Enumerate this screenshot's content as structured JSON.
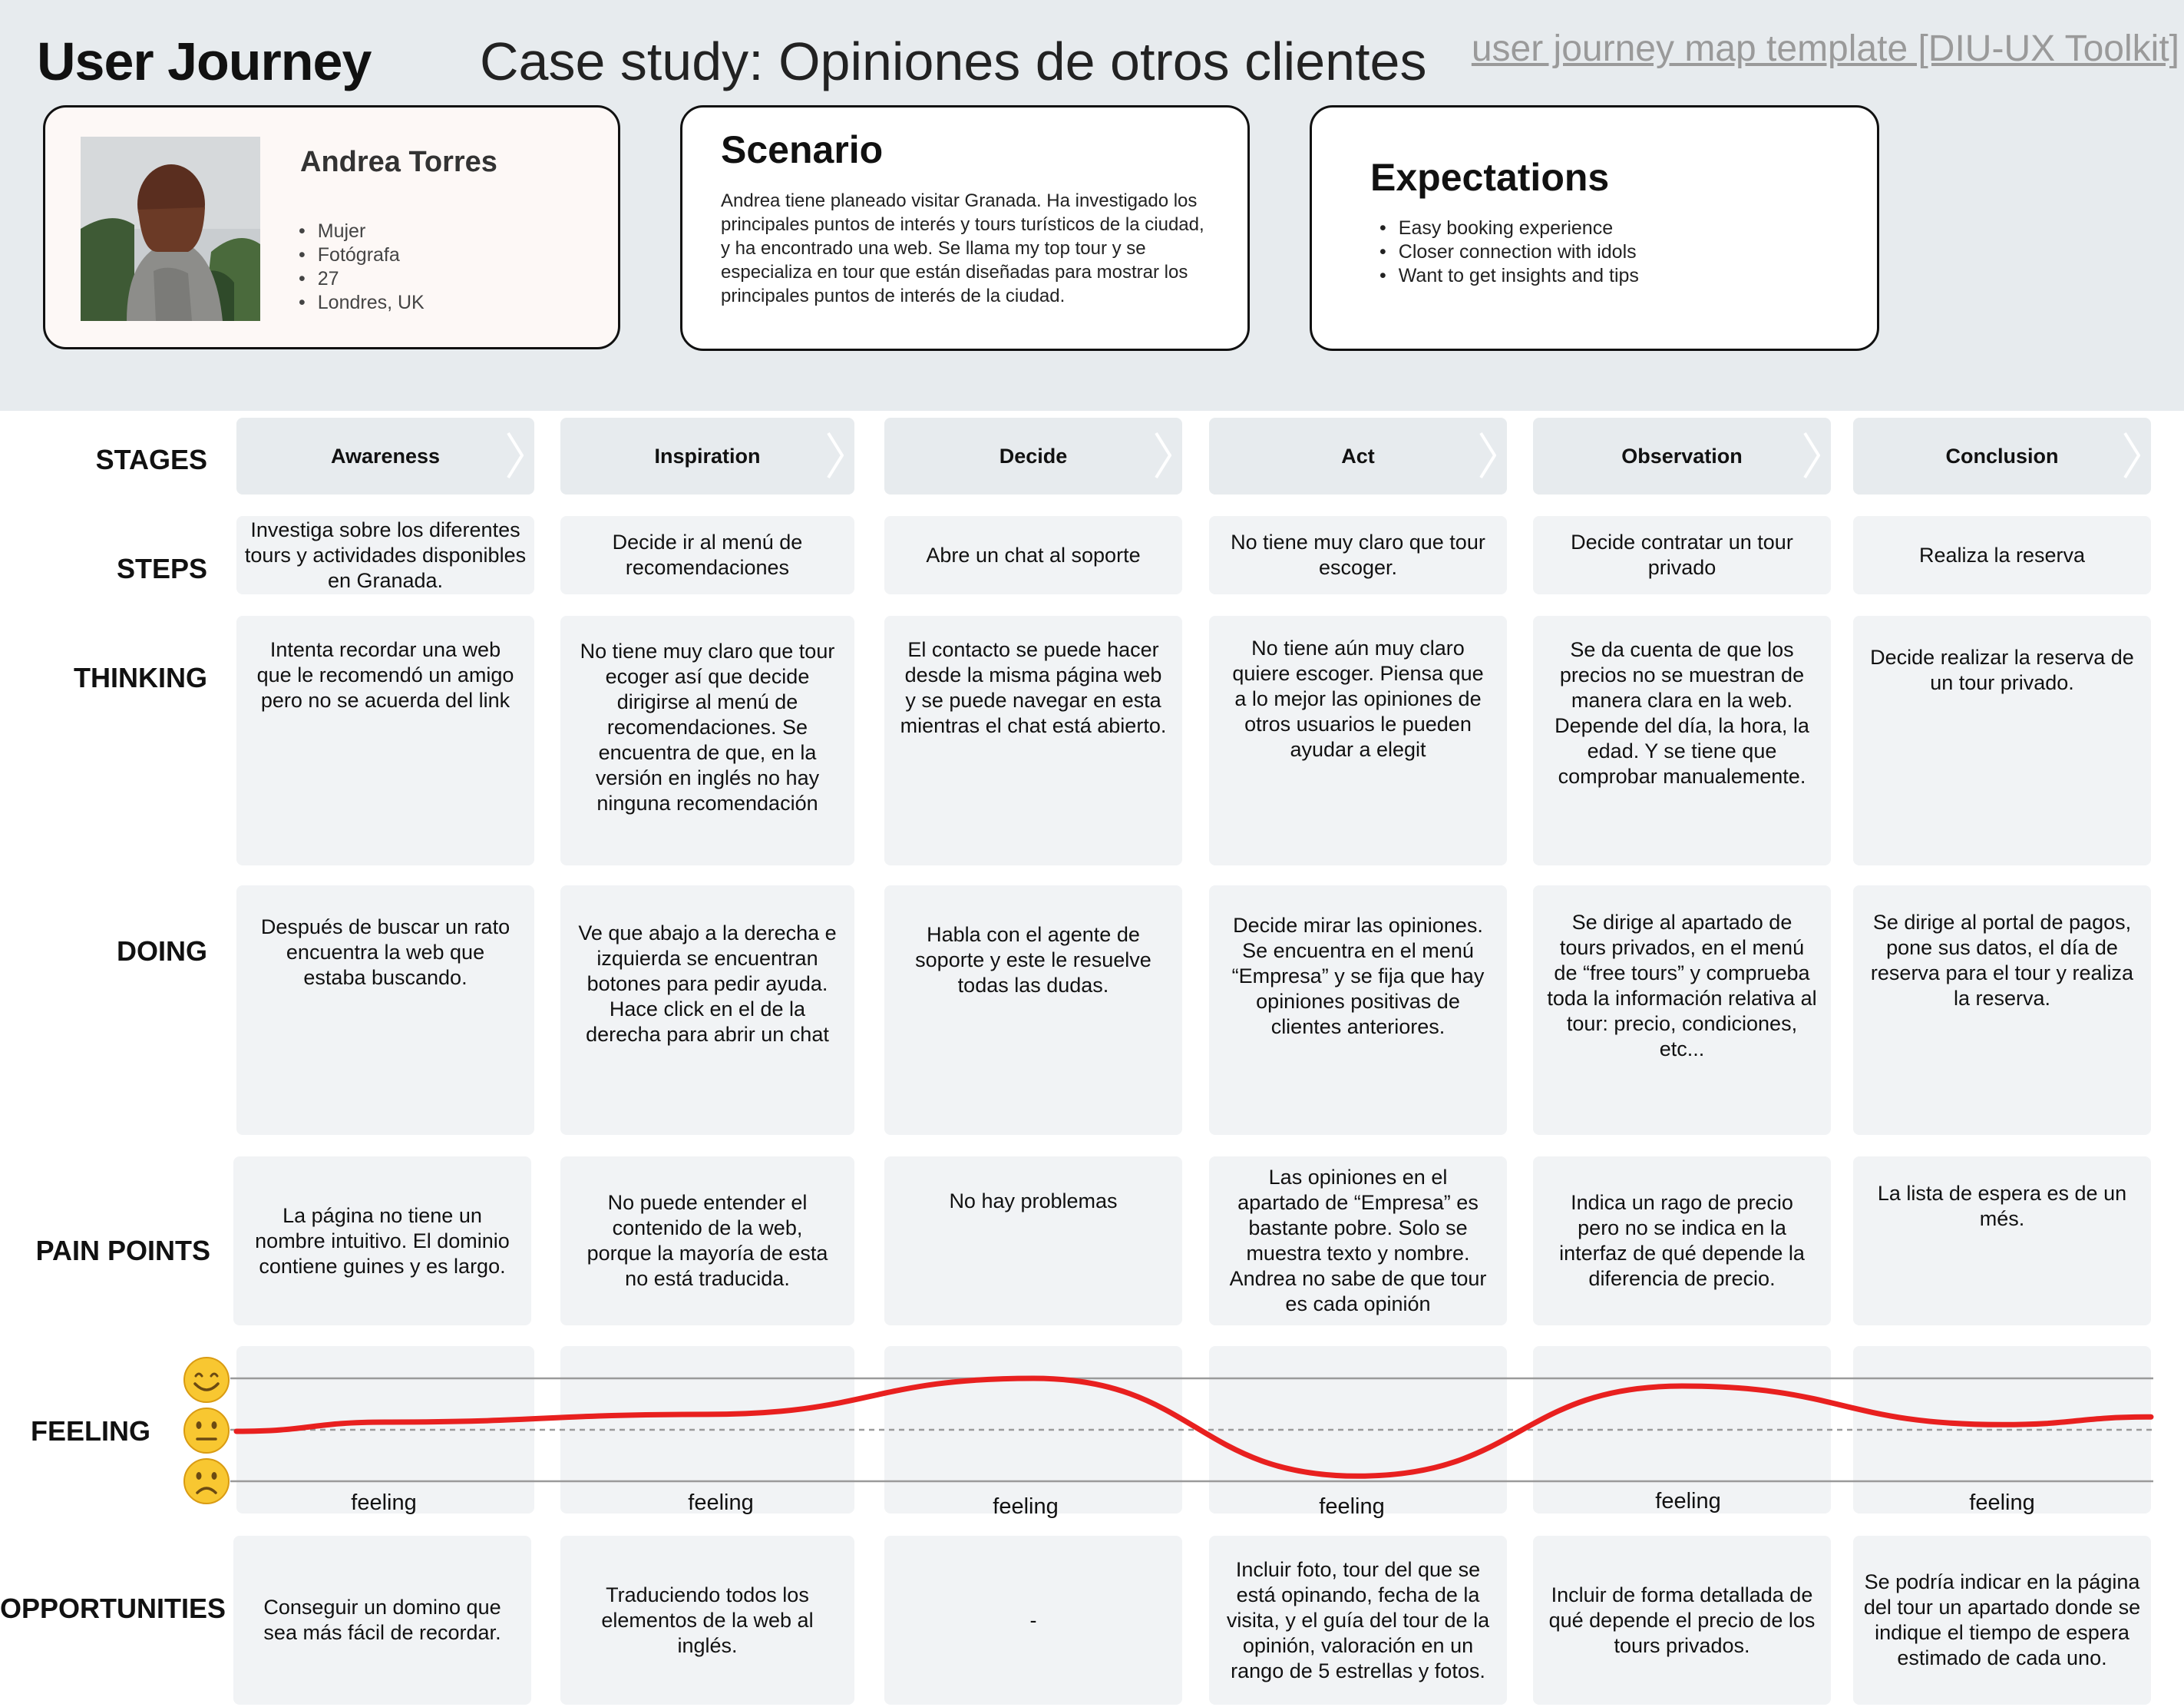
{
  "header": {
    "title": "User Journey",
    "case_study": "Case study: Opiniones de otros clientes",
    "toolkit_link": "user journey map template [DIU-UX Toolkit]"
  },
  "persona": {
    "name": "Andrea Torres",
    "details": [
      "Mujer",
      "Fotógrafa",
      "27",
      "Londres, UK"
    ]
  },
  "scenario": {
    "title": "Scenario",
    "text": "Andrea tiene planeado visitar Granada. Ha investigado los principales puntos de interés y tours turísticos de la ciudad, y ha encontrado una web. Se llama my top tour y se especializa en tour que están diseñadas para mostrar los principales puntos de interés de la ciudad."
  },
  "expectations": {
    "title": "Expectations",
    "items": [
      "Easy booking experience",
      "Closer connection with idols",
      "Want to get insights and tips"
    ]
  },
  "row_labels": {
    "stages": "STAGES",
    "steps": "STEPS",
    "thinking": "THINKING",
    "doing": "DOING",
    "pain_points": "PAIN POINTS",
    "feeling": "FEELING",
    "opportunities": "OPPORTUNITIES"
  },
  "stages": [
    "Awareness",
    "Inspiration",
    "Decide",
    "Act",
    "Observation",
    "Conclusion"
  ],
  "steps": [
    "Investiga sobre los diferentes tours y actividades disponibles en Granada.",
    "Decide ir al menú de recomendaciones",
    "Abre un chat al soporte",
    "No tiene muy claro que tour escoger.",
    "Decide contratar un tour privado",
    "Realiza la reserva"
  ],
  "thinking": [
    "Intenta recordar una web que le recomendó un amigo pero no se acuerda del link",
    "No tiene muy claro que tour ecoger así que decide dirigirse al menú de recomendaciones. Se encuentra de que, en la versión en inglés no hay ninguna recomendación",
    "El contacto se puede hacer desde la misma página web y se puede navegar en esta mientras el chat está abierto.",
    "No tiene aún muy claro quiere escoger. Piensa que a lo mejor las opiniones de otros usuarios le pueden ayudar a elegit",
    "Se da cuenta de que los precios no se muestran de manera clara en la web. Depende del día, la hora, la edad. Y se tiene que comprobar manualemente.",
    "Decide realizar la reserva de un tour privado."
  ],
  "doing": [
    "Después de buscar un rato encuentra la web que estaba buscando.",
    "Ve que abajo a la derecha e izquierda se encuentran botones para pedir ayuda. Hace click en el de la derecha para abrir un chat",
    "Habla con el agente de soporte y este le resuelve todas las dudas.",
    "Decide mirar las opiniones. Se encuentra en el menú “Empresa” y se fija que hay opiniones positivas de clientes anteriores.",
    "Se dirige al apartado de tours privados, en el menú de “free tours” y comprueba toda la información relativa al tour: precio, condiciones, etc...",
    "Se dirige al portal de pagos, pone sus datos, el día de reserva para el tour y realiza la reserva."
  ],
  "pain_points": [
    "La página no tiene un nombre intuitivo. El dominio contiene guines y es largo.",
    "No puede entender el contenido de la web, porque la mayoría de esta no está traducida.",
    "No hay problemas",
    "Las opiniones en el apartado de “Empresa” es bastante pobre. Solo se muestra texto y nombre. Andrea no sabe de que tour es cada opinión",
    "Indica un rago de precio pero no se indica en la interfaz de qué depende la diferencia de precio.",
    "La lista de espera es de un més."
  ],
  "feeling": {
    "labels": [
      "feeling",
      "feeling",
      "feeling",
      "feeling",
      "feeling",
      "feeling"
    ],
    "scale": [
      "happy",
      "neutral",
      "sad"
    ],
    "levels": [
      0.15,
      0.3,
      1.0,
      -0.9,
      0.85,
      0.1
    ],
    "line_color": "#e8201f"
  },
  "opportunities": [
    "Conseguir un domino que sea más fácil de recordar.",
    "Traduciendo todos los elementos de la web al inglés.",
    "-",
    "Incluir foto,  tour del que se está opinando, fecha de la visita, y el guía del tour de la opinión, valoración en un rango de 5 estrellas y fotos.",
    "Incluir de forma detallada de qué depende el precio de los tours privados.",
    "Se podría indicar en la página del tour un apartado donde se indique el tiempo de espera estimado de cada uno."
  ]
}
